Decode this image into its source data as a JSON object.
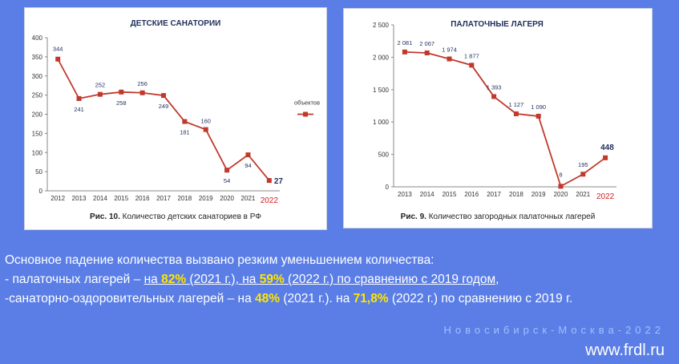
{
  "chart_data": [
    {
      "type": "line",
      "title": "ДЕТСКИЕ САНАТОРИИ",
      "x": [
        "2012",
        "2013",
        "2014",
        "2015",
        "2016",
        "2017",
        "2018",
        "2019",
        "2020",
        "2021",
        "2022"
      ],
      "values": [
        344,
        241,
        252,
        258,
        256,
        249,
        181,
        160,
        54,
        94,
        27
      ],
      "data_labels": [
        "344",
        "241",
        "252",
        "258",
        "256",
        "249",
        "181",
        "160",
        "54",
        "94",
        "27"
      ],
      "ylim": [
        0,
        400
      ],
      "yticks": [
        0,
        50,
        100,
        150,
        200,
        250,
        300,
        350,
        400
      ],
      "ytick_labels": [
        "0",
        "50",
        "100",
        "150",
        "200",
        "250",
        "300",
        "350",
        "400"
      ],
      "highlight_x_label": "2022",
      "legend": "объектов",
      "legend_position": "right",
      "grid": false,
      "color": "#c0392b"
    },
    {
      "type": "line",
      "title": "ПАЛАТОЧНЫЕ ЛАГЕРЯ",
      "x": [
        "2013",
        "2014",
        "2015",
        "2016",
        "2017",
        "2018",
        "2019",
        "2020",
        "2021",
        "2022"
      ],
      "values": [
        2081,
        2067,
        1974,
        1877,
        1393,
        1127,
        1090,
        8,
        195,
        448
      ],
      "data_labels": [
        "2 081",
        "2 067",
        "1 974",
        "1 877",
        "1 393",
        "1 127",
        "1 090",
        "8",
        "195",
        "448"
      ],
      "ylim": [
        0,
        2500
      ],
      "yticks": [
        0,
        500,
        1000,
        1500,
        2000,
        2500
      ],
      "ytick_labels": [
        "0",
        "500",
        "1 000",
        "1 500",
        "2 000",
        "2 500"
      ],
      "highlight_x_label": "2022",
      "grid": false,
      "color": "#c0392b"
    }
  ],
  "captions": {
    "fig10_num": "Рис. 10.",
    "fig10_text": " Количество детских санаториев в РФ",
    "fig9_num": "Рис. 9.",
    "fig9_text": " Количество загородных  палаточных лагерей"
  },
  "text": {
    "line1": "Основное падение количества вызвано резким уменьшением количества:",
    "l2_a": "- палаточных лагерей – ",
    "l2_b": "на ",
    "l2_c": "82%",
    "l2_d": " (2021 г.), на ",
    "l2_e": "59%",
    "l2_f": " (2022 г.) по сравнению с 2019 годом,",
    "l3_a": "-санаторно-оздоровительных лагерей – на ",
    "l3_b": "48%",
    "l3_c": " (2021 г.). на ",
    "l3_d": "71,8%",
    "l3_e": " (2022 г.) по сравнению с 2019 г."
  },
  "footer": {
    "city": "Новосибирск-Москва-2022",
    "url": "www.frdl.ru"
  }
}
